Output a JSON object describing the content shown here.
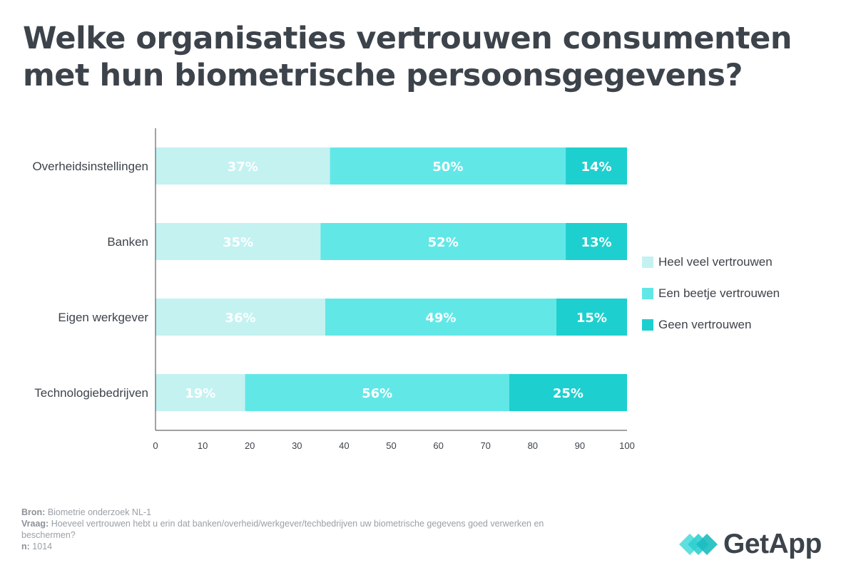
{
  "title": "Welke organisaties vertrouwen consumenten met hun biometrische persoonsgegevens?",
  "colors": {
    "heel_veel": "#c3f2f1",
    "een_beetje": "#62e7e7",
    "geen": "#1ecfcf",
    "axis": "#444444",
    "text": "#3d434b"
  },
  "chart_data": {
    "type": "bar",
    "orientation": "horizontal",
    "stacked": true,
    "title": "Welke organisaties vertrouwen consumenten met hun biometrische persoonsgegevens?",
    "categories": [
      "Overheidsinstellingen",
      "Banken",
      "Eigen werkgever",
      "Technologiebedrijven"
    ],
    "series": [
      {
        "name": "Heel veel vertrouwen",
        "values": [
          37,
          35,
          36,
          19
        ],
        "labels": [
          "37%",
          "35%",
          "36%",
          "19%"
        ]
      },
      {
        "name": "Een beetje vertrouwen",
        "values": [
          50,
          52,
          49,
          56
        ],
        "labels": [
          "50%",
          "52%",
          "49%",
          "56%"
        ]
      },
      {
        "name": "Geen vertrouwen",
        "values": [
          14,
          13,
          15,
          25
        ],
        "labels": [
          "14%",
          "13%",
          "15%",
          "25%"
        ]
      }
    ],
    "xlim": [
      0,
      100
    ],
    "xticks": [
      "0",
      "10",
      "20",
      "30",
      "40",
      "50",
      "60",
      "70",
      "80",
      "90",
      "100"
    ],
    "xlabel": "",
    "ylabel": "",
    "grid": false,
    "legend_position": "right"
  },
  "legend": [
    {
      "label": "Heel veel vertrouwen"
    },
    {
      "label": "Een beetje vertrouwen"
    },
    {
      "label": "Geen vertrouwen"
    }
  ],
  "footer": {
    "bron_label": "Bron:",
    "bron_text": "Biometrie onderzoek NL-1",
    "vraag_label": "Vraag:",
    "vraag_text": "Hoeveel vertrouwen hebt u erin dat banken/overheid/werkgever/techbedrijven uw biometrische gegevens goed verwerken en beschermen?",
    "n_label": "n:",
    "n_text": "1014"
  },
  "logo": {
    "text": "GetApp",
    "icon": "getapp-logo-icon"
  }
}
